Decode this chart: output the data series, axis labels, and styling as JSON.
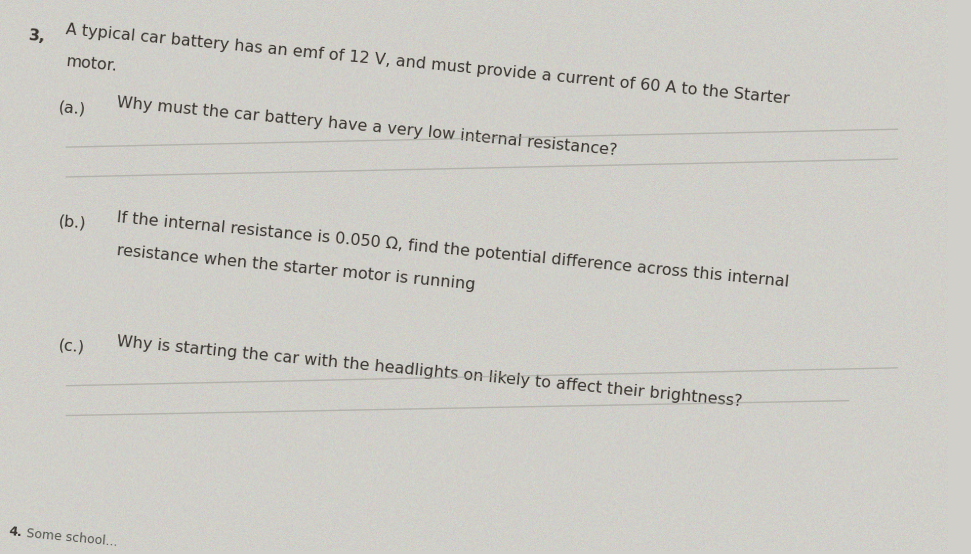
{
  "background_color": "#d0cfc9",
  "text_color": "#3a3530",
  "question_number": "3,",
  "intro_line1": "A typical car battery has an emf of 12 V, and must provide a current of 60 A to the Starter",
  "intro_line2": "motor.",
  "part_a_label": "(a.)",
  "part_a_text": "Why must the car battery have a very low internal resistance?",
  "part_b_label": "(b.)",
  "part_b_line1": "If the internal resistance is 0.050 Ω, find the potential difference across this internal",
  "part_b_line2": "resistance when the starter motor is running",
  "part_c_label": "(c.)",
  "part_c_text": "Why is starting the car with the headlights on likely to affect their brightness?",
  "footer_num": "4.",
  "footer_text": "Some school...",
  "line_color": "#a0a098",
  "font_size": 11.5,
  "font_size_footer": 9,
  "tilt": -5.5
}
